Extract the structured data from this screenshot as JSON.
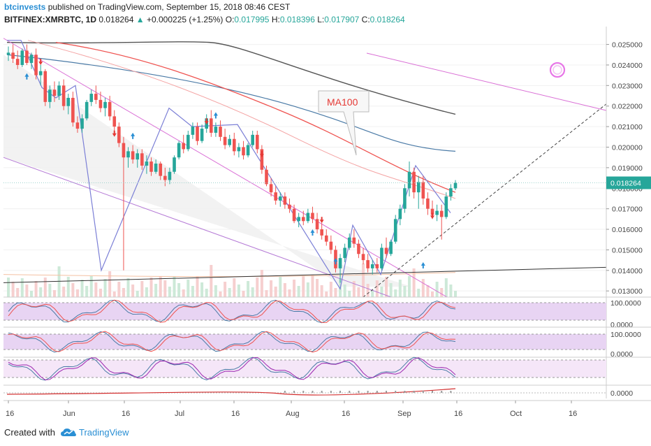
{
  "header": {
    "author": "btcinvests",
    "published": " published on TradingView.com, September 15, 2018 08:46 CEST",
    "symbol": "BITFINEX:XMRBTC, 1D",
    "last": "0.018264",
    "change": "+0.000225 (+1.25%)",
    "o_label": "O:",
    "o": "0.017995",
    "h_label": "H:",
    "h": "0.018396",
    "l_label": "L:",
    "l": "0.017907",
    "c_label": "C:",
    "c": "0.018264"
  },
  "footer": {
    "created": "Created with",
    "brand": "TradingView"
  },
  "colors": {
    "bull": "#26a69a",
    "bear": "#ef5350",
    "ma_dark": "#555555",
    "ma_blue": "#4a7aa6",
    "ma_red": "#ef5350",
    "wave": "#7b7fd6",
    "channel": "#da70d6",
    "label_bg": "#2a8fd4"
  },
  "chart_data": {
    "type": "candlestick",
    "symbol": "BITFINEX:XMRBTC",
    "timeframe": "1D",
    "x_ticks": [
      "16",
      "Jun",
      "16",
      "Jul",
      "16",
      "Aug",
      "16",
      "Sep",
      "16",
      "Oct",
      "16"
    ],
    "y_ticks": [
      "0.025000",
      "0.024000",
      "0.023000",
      "0.022000",
      "0.021000",
      "0.020000",
      "0.019000",
      "0.018000",
      "0.017000",
      "0.016000",
      "0.015000",
      "0.014000",
      "0.013000"
    ],
    "ylim": [
      0.0127,
      0.0257
    ],
    "last_price_label": "0.018264",
    "annotation": "MA100",
    "ohlc": [
      [
        0.0245,
        0.0249,
        0.0242,
        0.0246
      ],
      [
        0.0246,
        0.025,
        0.0241,
        0.0243
      ],
      [
        0.0243,
        0.0247,
        0.0238,
        0.024
      ],
      [
        0.024,
        0.0248,
        0.0239,
        0.0247
      ],
      [
        0.0247,
        0.025,
        0.024,
        0.0241
      ],
      [
        0.0241,
        0.0246,
        0.0238,
        0.0245
      ],
      [
        0.0245,
        0.0248,
        0.0233,
        0.0235
      ],
      [
        0.0235,
        0.024,
        0.023,
        0.0237
      ],
      [
        0.0237,
        0.0238,
        0.022,
        0.0222
      ],
      [
        0.0222,
        0.023,
        0.0219,
        0.0228
      ],
      [
        0.0228,
        0.0232,
        0.0222,
        0.0225
      ],
      [
        0.0225,
        0.0232,
        0.0223,
        0.023
      ],
      [
        0.023,
        0.0233,
        0.0218,
        0.022
      ],
      [
        0.022,
        0.0226,
        0.0216,
        0.0224
      ],
      [
        0.0224,
        0.0227,
        0.021,
        0.0212
      ],
      [
        0.0212,
        0.0215,
        0.0207,
        0.0209
      ],
      [
        0.0209,
        0.0216,
        0.0207,
        0.0214
      ],
      [
        0.0214,
        0.0223,
        0.0213,
        0.0222
      ],
      [
        0.0222,
        0.0228,
        0.022,
        0.0226
      ],
      [
        0.0226,
        0.023,
        0.0221,
        0.0223
      ],
      [
        0.0223,
        0.0227,
        0.0217,
        0.0219
      ],
      [
        0.0219,
        0.0224,
        0.0215,
        0.0222
      ],
      [
        0.0222,
        0.0225,
        0.0213,
        0.0215
      ],
      [
        0.0215,
        0.0218,
        0.0208,
        0.021
      ],
      [
        0.021,
        0.0212,
        0.02,
        0.0202
      ],
      [
        0.0202,
        0.0205,
        0.014,
        0.0195
      ],
      [
        0.0195,
        0.02,
        0.019,
        0.0198
      ],
      [
        0.0198,
        0.0201,
        0.0192,
        0.0194
      ],
      [
        0.0194,
        0.0199,
        0.019,
        0.0197
      ],
      [
        0.0197,
        0.0199,
        0.0189,
        0.0191
      ],
      [
        0.0191,
        0.0196,
        0.0187,
        0.0193
      ],
      [
        0.0193,
        0.0195,
        0.0186,
        0.0188
      ],
      [
        0.0188,
        0.0194,
        0.0187,
        0.0192
      ],
      [
        0.0192,
        0.0193,
        0.0184,
        0.0186
      ],
      [
        0.0186,
        0.019,
        0.0181,
        0.0184
      ],
      [
        0.0184,
        0.019,
        0.0182,
        0.0188
      ],
      [
        0.0188,
        0.0196,
        0.0187,
        0.0195
      ],
      [
        0.0195,
        0.0203,
        0.0194,
        0.0202
      ],
      [
        0.0202,
        0.0206,
        0.0197,
        0.0199
      ],
      [
        0.0199,
        0.0208,
        0.0198,
        0.0206
      ],
      [
        0.0206,
        0.0212,
        0.0204,
        0.021
      ],
      [
        0.021,
        0.0212,
        0.0201,
        0.0203
      ],
      [
        0.0203,
        0.0211,
        0.0202,
        0.0209
      ],
      [
        0.0209,
        0.0216,
        0.0207,
        0.0214
      ],
      [
        0.0214,
        0.0218,
        0.0205,
        0.0207
      ],
      [
        0.0207,
        0.0212,
        0.0205,
        0.021
      ],
      [
        0.021,
        0.0213,
        0.0203,
        0.0205
      ],
      [
        0.0205,
        0.0209,
        0.0199,
        0.0201
      ],
      [
        0.0201,
        0.0206,
        0.02,
        0.0204
      ],
      [
        0.0204,
        0.0207,
        0.0196,
        0.0198
      ],
      [
        0.0198,
        0.0202,
        0.0195,
        0.02
      ],
      [
        0.02,
        0.0203,
        0.0194,
        0.0196
      ],
      [
        0.0196,
        0.0202,
        0.0195,
        0.0201
      ],
      [
        0.0201,
        0.0208,
        0.02,
        0.0206
      ],
      [
        0.0206,
        0.0208,
        0.0197,
        0.0199
      ],
      [
        0.0199,
        0.0201,
        0.0187,
        0.0189
      ],
      [
        0.0189,
        0.0191,
        0.0181,
        0.0182
      ],
      [
        0.0182,
        0.0185,
        0.0176,
        0.0178
      ],
      [
        0.0178,
        0.0181,
        0.0172,
        0.0174
      ],
      [
        0.0174,
        0.0178,
        0.0171,
        0.0176
      ],
      [
        0.0176,
        0.0178,
        0.017,
        0.0172
      ],
      [
        0.0172,
        0.0175,
        0.0168,
        0.017
      ],
      [
        0.017,
        0.0172,
        0.0163,
        0.0164
      ],
      [
        0.0164,
        0.0168,
        0.0161,
        0.0166
      ],
      [
        0.0166,
        0.0169,
        0.0162,
        0.0164
      ],
      [
        0.0164,
        0.017,
        0.0163,
        0.0168
      ],
      [
        0.0168,
        0.0171,
        0.0163,
        0.0165
      ],
      [
        0.0165,
        0.0168,
        0.0158,
        0.016
      ],
      [
        0.016,
        0.0163,
        0.0155,
        0.0157
      ],
      [
        0.0157,
        0.016,
        0.0152,
        0.0154
      ],
      [
        0.0154,
        0.0157,
        0.0148,
        0.015
      ],
      [
        0.015,
        0.0152,
        0.0139,
        0.0141
      ],
      [
        0.0141,
        0.0148,
        0.0134,
        0.0146
      ],
      [
        0.0146,
        0.0153,
        0.0144,
        0.0151
      ],
      [
        0.0151,
        0.0158,
        0.015,
        0.0156
      ],
      [
        0.0156,
        0.016,
        0.0151,
        0.0153
      ],
      [
        0.0153,
        0.0155,
        0.0146,
        0.0148
      ],
      [
        0.0148,
        0.0151,
        0.0143,
        0.0145
      ],
      [
        0.0145,
        0.0148,
        0.0139,
        0.0141
      ],
      [
        0.0141,
        0.0145,
        0.0138,
        0.0143
      ],
      [
        0.0143,
        0.0146,
        0.0139,
        0.0141
      ],
      [
        0.0141,
        0.0153,
        0.014,
        0.0151
      ],
      [
        0.0151,
        0.0156,
        0.0146,
        0.0148
      ],
      [
        0.0148,
        0.0155,
        0.0147,
        0.0154
      ],
      [
        0.0154,
        0.0167,
        0.0153,
        0.0165
      ],
      [
        0.0165,
        0.0172,
        0.0162,
        0.017
      ],
      [
        0.017,
        0.0182,
        0.0168,
        0.018
      ],
      [
        0.018,
        0.0193,
        0.0176,
        0.0188
      ],
      [
        0.0188,
        0.019,
        0.0175,
        0.0178
      ],
      [
        0.0178,
        0.0186,
        0.017,
        0.0183
      ],
      [
        0.0183,
        0.0186,
        0.0172,
        0.0175
      ],
      [
        0.0175,
        0.0178,
        0.0167,
        0.017
      ],
      [
        0.017,
        0.0174,
        0.0165,
        0.0167
      ],
      [
        0.0167,
        0.0172,
        0.0164,
        0.0169
      ],
      [
        0.0169,
        0.0172,
        0.0155,
        0.0166
      ],
      [
        0.0166,
        0.0178,
        0.0165,
        0.0176
      ],
      [
        0.0176,
        0.0182,
        0.0174,
        0.018
      ],
      [
        0.017995,
        0.018396,
        0.017907,
        0.018264
      ]
    ]
  }
}
